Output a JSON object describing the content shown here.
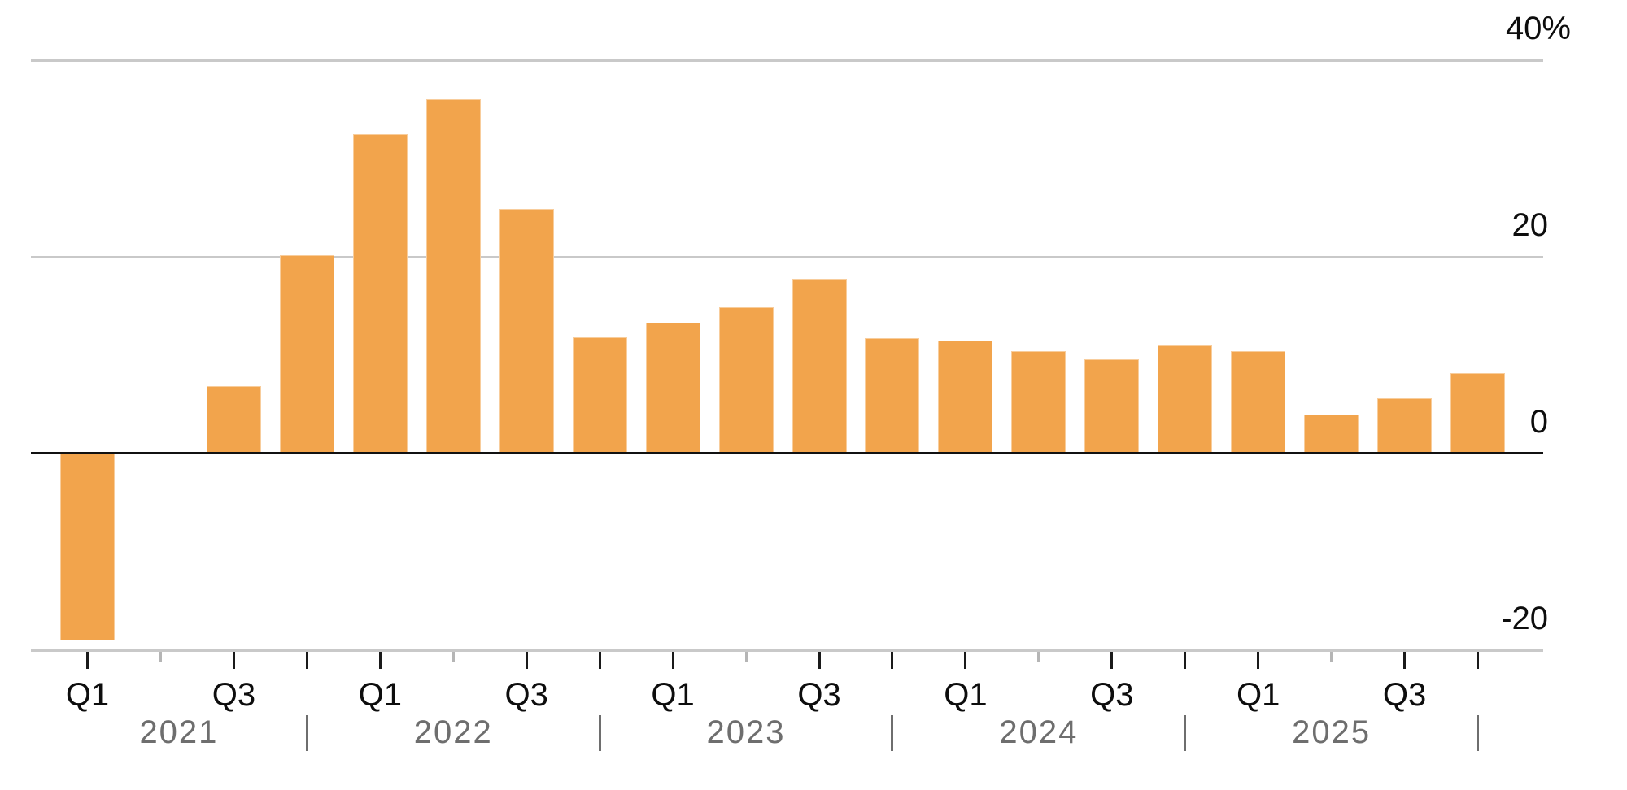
{
  "chart_data": {
    "type": "bar",
    "title": "",
    "unit": "%",
    "categories": [
      "2021 Q1",
      "2021 Q2",
      "2021 Q3",
      "2021 Q4",
      "2022 Q1",
      "2022 Q2",
      "2022 Q3",
      "2022 Q4",
      "2023 Q1",
      "2023 Q2",
      "2023 Q3",
      "2023 Q4",
      "2024 Q1",
      "2024 Q2",
      "2024 Q3",
      "2024 Q4",
      "2025 Q1",
      "2025 Q2",
      "2025 Q3",
      "2025 Q4"
    ],
    "values": [
      -19.0,
      0,
      6.9,
      20.2,
      32.5,
      36.0,
      24.9,
      11.8,
      13.3,
      14.9,
      17.8,
      11.7,
      11.5,
      10.4,
      9.6,
      11.0,
      10.4,
      4.0,
      5.6,
      8.2
    ],
    "ylim": [
      -20,
      40
    ],
    "y_ticks": [
      {
        "value": 40,
        "label": "40%"
      },
      {
        "value": 20,
        "label": "20"
      },
      {
        "value": 0,
        "label": "0"
      },
      {
        "value": -20,
        "label": "-20"
      }
    ],
    "gridline_values": [
      40,
      20
    ],
    "baseline_value": 0,
    "bottom_axis_value": -20,
    "x_axis": {
      "years": [
        "2021",
        "2022",
        "2023",
        "2024",
        "2025"
      ],
      "labeled_quarters": [
        "Q1",
        "Q3"
      ],
      "quarter_label_texts": [
        "Q1",
        "Q3",
        "Q1",
        "Q3",
        "Q1",
        "Q3",
        "Q1",
        "Q3",
        "Q1",
        "Q3"
      ],
      "minor_tick_quarter": "Q2",
      "year_separator_glyph": "|"
    },
    "legend": "none",
    "grid": "horizontal"
  },
  "colors": {
    "bar": "#F2A44C",
    "gridline": "#c9c9c9",
    "bottom_axis": "#c9c9c9",
    "zero_line": "#111111",
    "major_tick": "#1a1a1a",
    "minor_tick": "#b5b5b5",
    "quarter_label": "#0d0d0d",
    "year_label": "#6e6e6e",
    "year_separator": "#6e6e6e",
    "y_label": "#0d0d0d",
    "background": "#ffffff"
  }
}
